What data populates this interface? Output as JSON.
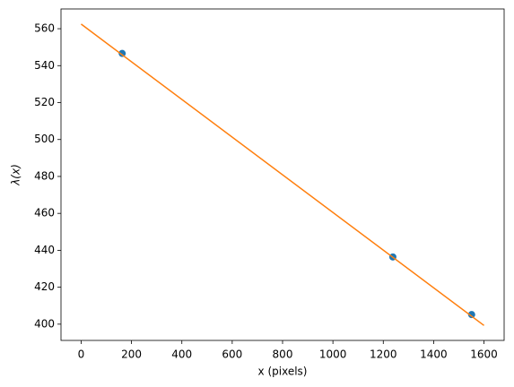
{
  "chart_data": {
    "type": "scatter",
    "xlabel": "x (pixels)",
    "ylabel": "λ(x)",
    "series": [
      {
        "type": "scatter",
        "color": "#1f77b4",
        "x": [
          163,
          1238,
          1551
        ],
        "values": [
          546.6,
          436.4,
          405.2
        ]
      },
      {
        "type": "line",
        "color": "#ff7f0e",
        "x": [
          0,
          1600
        ],
        "values": [
          562.5,
          399.3
        ]
      }
    ],
    "xlim": [
      -80,
      1680
    ],
    "ylim": [
      391.2,
      570.7
    ],
    "xticks": [
      0,
      200,
      400,
      600,
      800,
      1000,
      1200,
      1400,
      1600
    ],
    "yticks": [
      400,
      420,
      440,
      460,
      480,
      500,
      520,
      540,
      560
    ],
    "grid": false
  }
}
